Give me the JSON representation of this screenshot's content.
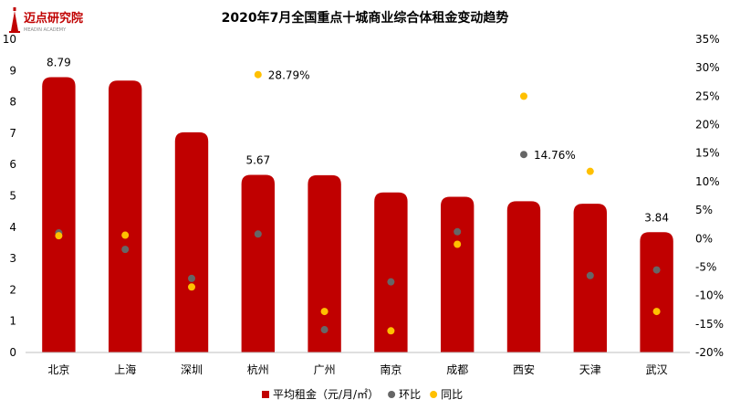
{
  "logo": {
    "name": "迈点研究院",
    "tagline": "MEADIN ACADEMY"
  },
  "chart_data": {
    "type": "bar",
    "title": "2020年7月全国重点十城商业综合体租金变动趋势",
    "categories": [
      "北京",
      "上海",
      "深圳",
      "杭州",
      "广州",
      "南京",
      "成都",
      "西安",
      "天津",
      "武汉"
    ],
    "series": [
      {
        "name": "平均租金（元/月/㎡）",
        "axis": "left",
        "type": "bar",
        "color": "#C00000",
        "values": [
          8.79,
          8.68,
          7.03,
          5.67,
          5.66,
          5.11,
          4.97,
          4.83,
          4.75,
          3.84
        ]
      },
      {
        "name": "环比",
        "axis": "right",
        "type": "scatter",
        "color": "#666666",
        "values": [
          1.0,
          -1.9,
          -7.0,
          0.8,
          -16.0,
          -7.6,
          1.2,
          14.76,
          -6.5,
          -5.5
        ]
      },
      {
        "name": "同比",
        "axis": "right",
        "type": "scatter",
        "color": "#FFC000",
        "values": [
          0.5,
          0.6,
          -8.5,
          28.79,
          -12.8,
          -16.2,
          -1.0,
          25.0,
          11.8,
          -12.8
        ]
      }
    ],
    "left_axis": {
      "min": 0,
      "max": 10,
      "step": 1
    },
    "right_axis": {
      "min": -20,
      "max": 35,
      "step": 5,
      "format": "percent"
    },
    "annotations": [
      {
        "series": 0,
        "index": 0,
        "text": "8.79"
      },
      {
        "series": 0,
        "index": 3,
        "text": "5.67"
      },
      {
        "series": 0,
        "index": 9,
        "text": "3.84"
      },
      {
        "series": 2,
        "index": 3,
        "text": "28.79%"
      },
      {
        "series": 1,
        "index": 7,
        "text": "14.76%"
      }
    ],
    "grid": false,
    "legend_position": "bottom"
  }
}
